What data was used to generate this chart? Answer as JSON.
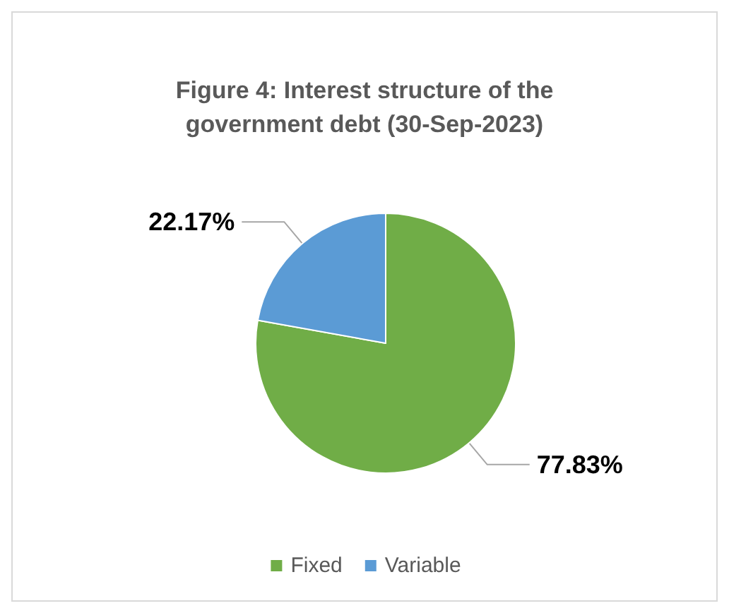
{
  "chart_data": {
    "type": "pie",
    "title": "Figure 4: Interest structure of the\ngovernment debt (30-Sep-2023)",
    "categories": [
      "Fixed",
      "Variable"
    ],
    "values": [
      77.83,
      22.17
    ],
    "colors": [
      "#70ad47",
      "#5b9bd5"
    ],
    "value_labels": [
      "77.83%",
      "22.17%"
    ],
    "legend": "bottom"
  }
}
